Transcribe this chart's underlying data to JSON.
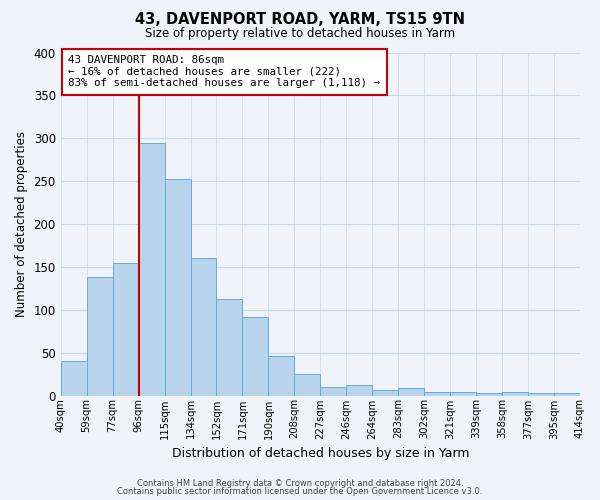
{
  "title": "43, DAVENPORT ROAD, YARM, TS15 9TN",
  "subtitle": "Size of property relative to detached houses in Yarm",
  "xlabel": "Distribution of detached houses by size in Yarm",
  "ylabel": "Number of detached properties",
  "tick_labels": [
    "40sqm",
    "59sqm",
    "77sqm",
    "96sqm",
    "115sqm",
    "134sqm",
    "152sqm",
    "171sqm",
    "190sqm",
    "208sqm",
    "227sqm",
    "246sqm",
    "264sqm",
    "283sqm",
    "302sqm",
    "321sqm",
    "339sqm",
    "358sqm",
    "377sqm",
    "395sqm",
    "414sqm"
  ],
  "bar_values": [
    40,
    138,
    155,
    295,
    252,
    160,
    113,
    91,
    46,
    25,
    10,
    12,
    6,
    9,
    4,
    4,
    3,
    4,
    3,
    3
  ],
  "bar_color": "#b8d4ec",
  "bar_edge_color": "#6aaad4",
  "ylim": [
    0,
    400
  ],
  "yticks": [
    0,
    50,
    100,
    150,
    200,
    250,
    300,
    350,
    400
  ],
  "vline_x": 3,
  "vline_color": "#cc0000",
  "annotation_title": "43 DAVENPORT ROAD: 86sqm",
  "annotation_line1": "← 16% of detached houses are smaller (222)",
  "annotation_line2": "83% of semi-detached houses are larger (1,118) →",
  "annotation_box_color": "#cc0000",
  "footer1": "Contains HM Land Registry data © Crown copyright and database right 2024.",
  "footer2": "Contains public sector information licensed under the Open Government Licence v3.0.",
  "bg_color": "#f0f4fa",
  "grid_color": "#c8d8ec"
}
